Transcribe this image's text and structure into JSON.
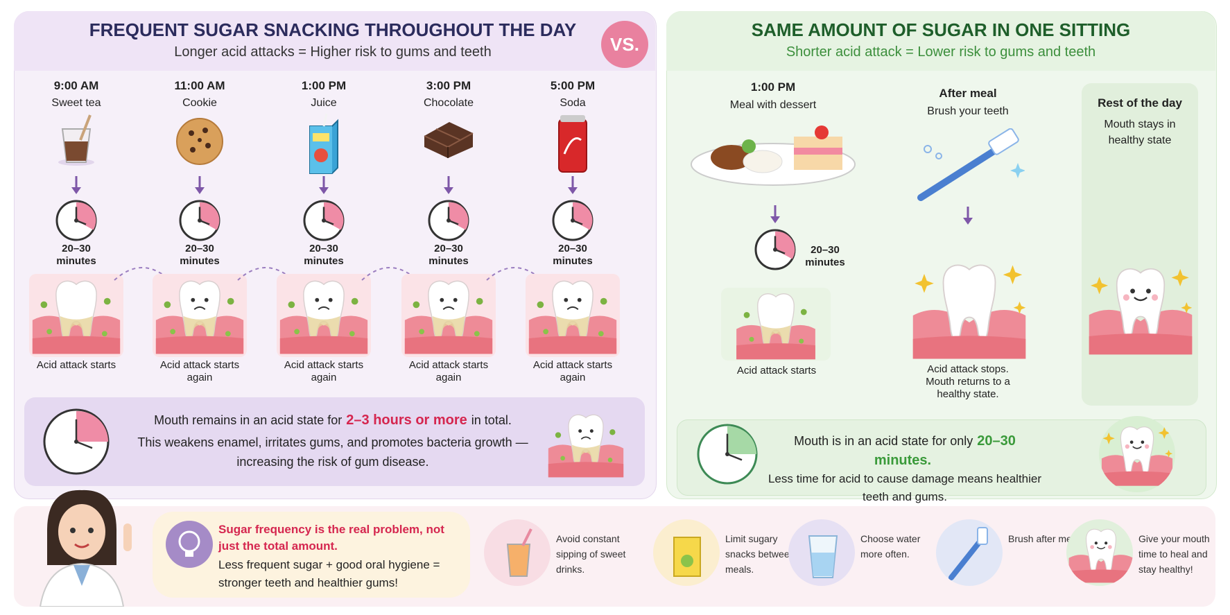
{
  "left": {
    "title": "FREQUENT SUGAR SNACKING THROUGHOUT THE DAY",
    "subtitle": "Longer acid attacks = Higher risk to gums and teeth",
    "vs": "VS.",
    "snacks": [
      {
        "time": "9:00 AM",
        "item": "Sweet tea",
        "duration": "20–30 minutes",
        "caption": "Acid attack starts"
      },
      {
        "time": "11:00 AM",
        "item": "Cookie",
        "duration": "20–30 minutes",
        "caption": "Acid attack starts again"
      },
      {
        "time": "1:00 PM",
        "item": "Juice",
        "duration": "20–30 minutes",
        "caption": "Acid attack starts again"
      },
      {
        "time": "3:00 PM",
        "item": "Chocolate",
        "duration": "20–30 minutes",
        "caption": "Acid attack starts again"
      },
      {
        "time": "5:00 PM",
        "item": "Soda",
        "duration": "20–30 minutes",
        "caption": "Acid attack starts again"
      }
    ],
    "summary": {
      "before": "Mouth remains in an acid state for",
      "highlight": "2–3 hours or more",
      "after": "in total.",
      "body": "This weakens enamel, irritates gums, and promotes bacteria growth — increasing the risk of gum disease."
    }
  },
  "right": {
    "title": "SAME AMOUNT OF SUGAR IN ONE SITTING",
    "subtitle": "Shorter acid attack = Lower risk to gums and teeth",
    "steps": [
      {
        "time": "1:00 PM",
        "item": "Meal with dessert",
        "duration": "20–30 minutes",
        "caption": "Acid attack starts"
      },
      {
        "time": "After meal",
        "item": "Brush your teeth",
        "caption": "Acid attack stops. Mouth returns to a healthy state."
      },
      {
        "time": "Rest of the day",
        "item": "Mouth stays in healthy state"
      }
    ],
    "summary": {
      "before": "Mouth is in an acid state for only",
      "highlight": "20–30 minutes.",
      "body": "Less time for acid to cause damage means healthier teeth and gums."
    }
  },
  "tip": {
    "headline": "Sugar frequency is the real problem, not just the total amount.",
    "body": "Less frequent sugar + good oral hygiene = stronger teeth and healthier gums!"
  },
  "tips": [
    "Avoid constant sipping of sweet drinks.",
    "Limit sugary snacks between meals.",
    "Choose water more often.",
    "Brush after meals.",
    "Give your mouth time to heal and stay healthy!"
  ]
}
